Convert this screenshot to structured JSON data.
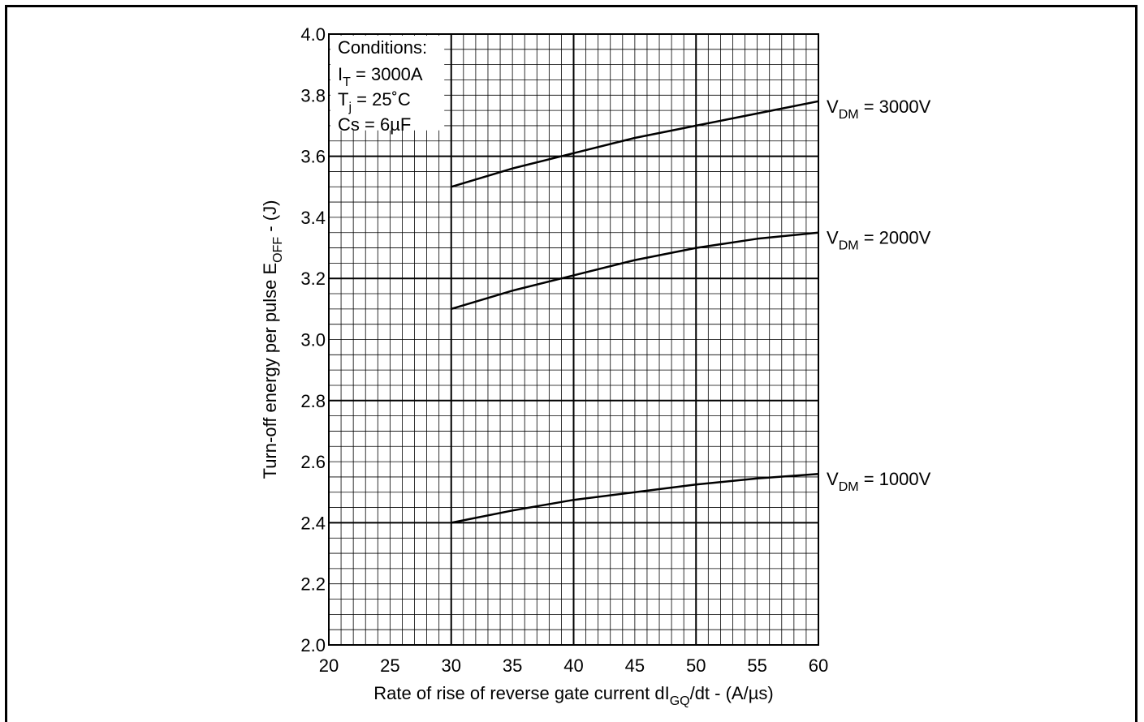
{
  "chart_data": {
    "type": "line",
    "xlabel_main": "Rate of rise of reverse gate current  dI",
    "xlabel_sub": "GQ",
    "xlabel_tail": "/dt - (A/µs)",
    "ylabel_main": "Turn-off energy per pulse E",
    "ylabel_sub": "OFF",
    "ylabel_tail": " - (J)",
    "xlim": [
      20,
      60
    ],
    "ylim": [
      2.0,
      4.0
    ],
    "x_ticks": [
      "20",
      "25",
      "30",
      "35",
      "40",
      "45",
      "50",
      "55",
      "60"
    ],
    "y_ticks": [
      "2.0",
      "2.2",
      "2.4",
      "2.6",
      "2.8",
      "3.0",
      "3.2",
      "3.4",
      "3.6",
      "3.8",
      "4.0"
    ],
    "grid": true,
    "conditions": {
      "title": "Conditions:",
      "it_main": "I",
      "it_sub": "T",
      "it_tail": " = 3000A",
      "tj_main": "T",
      "tj_sub": "j",
      "tj_tail": " = 25˚C",
      "cs": "Cs = 6µF"
    },
    "series": [
      {
        "name_main": "V",
        "name_sub": "DM",
        "name_tail": " = 3000V",
        "x": [
          30,
          35,
          40,
          45,
          50,
          55,
          60
        ],
        "y": [
          3.5,
          3.56,
          3.61,
          3.66,
          3.7,
          3.74,
          3.78
        ]
      },
      {
        "name_main": "V",
        "name_sub": "DM",
        "name_tail": " = 2000V",
        "x": [
          30,
          35,
          40,
          45,
          50,
          55,
          60
        ],
        "y": [
          3.1,
          3.16,
          3.21,
          3.26,
          3.3,
          3.33,
          3.35
        ]
      },
      {
        "name_main": "V",
        "name_sub": "DM",
        "name_tail": " = 1000V",
        "x": [
          30,
          35,
          40,
          45,
          50,
          55,
          60
        ],
        "y": [
          2.4,
          2.44,
          2.475,
          2.5,
          2.525,
          2.545,
          2.56
        ]
      }
    ]
  }
}
